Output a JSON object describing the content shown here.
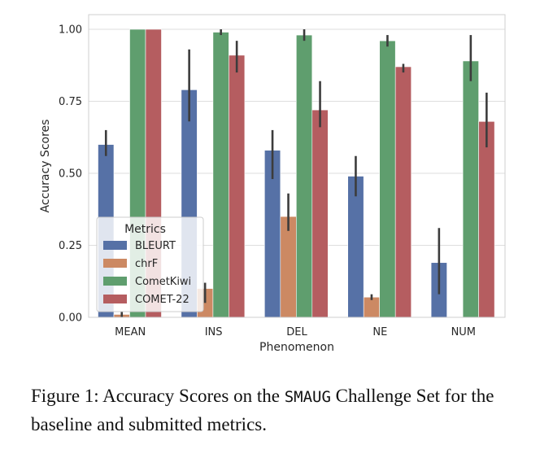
{
  "chart_data": {
    "type": "bar",
    "xlabel": "Phenomenon",
    "ylabel": "Accuracy Scores",
    "ylim": [
      0,
      1.0
    ],
    "yticks": [
      "0.00",
      "0.25",
      "0.50",
      "0.75",
      "1.00"
    ],
    "grid": true,
    "categories": [
      "MEAN",
      "INS",
      "DEL",
      "NE",
      "NUM"
    ],
    "legend": {
      "title": "Metrics",
      "placement": "lower-left"
    },
    "series": [
      {
        "name": "BLEURT",
        "color": "#5671a6",
        "values": [
          0.6,
          0.79,
          0.58,
          0.49,
          0.19
        ],
        "err_low": [
          0.56,
          0.68,
          0.48,
          0.42,
          0.08
        ],
        "err_high": [
          0.65,
          0.93,
          0.65,
          0.56,
          0.31
        ]
      },
      {
        "name": "chrF",
        "color": "#cc8963",
        "values": [
          0.01,
          0.1,
          0.35,
          0.07,
          0.0
        ],
        "err_low": [
          0.0,
          0.05,
          0.3,
          0.06,
          0.0
        ],
        "err_high": [
          0.02,
          0.12,
          0.43,
          0.08,
          0.0
        ]
      },
      {
        "name": "CometKiwi",
        "color": "#5f9e6e",
        "values": [
          1.0,
          0.99,
          0.98,
          0.96,
          0.89
        ],
        "err_low": [
          1.0,
          0.98,
          0.96,
          0.94,
          0.82
        ],
        "err_high": [
          1.0,
          1.0,
          1.0,
          0.98,
          0.98
        ]
      },
      {
        "name": "COMET-22",
        "color": "#b55d60",
        "values": [
          1.0,
          0.91,
          0.72,
          0.87,
          0.68
        ],
        "err_low": [
          1.0,
          0.85,
          0.66,
          0.85,
          0.59
        ],
        "err_high": [
          1.0,
          0.96,
          0.82,
          0.88,
          0.78
        ]
      }
    ]
  },
  "caption": {
    "prefix": "Figure 1: Accuracy Scores on the ",
    "mono": "SMAUG",
    "suffix": " Challenge Set for the baseline and submitted metrics."
  }
}
